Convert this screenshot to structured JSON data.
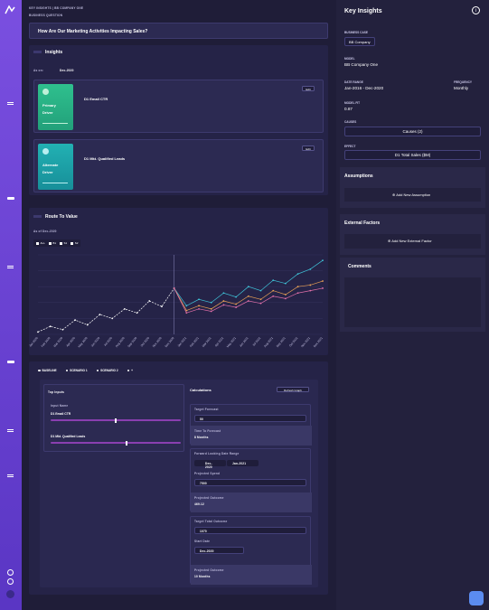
{
  "breadcrumb": [
    "KEY INSIGHTS",
    "BB COMPANY ONE"
  ],
  "business_question": {
    "label": "BUSINESS QUESTION",
    "text": "How Are Our Marketing Activities Impacting Sales?"
  },
  "insights": {
    "title": "Insights",
    "as_on_label": "As on:",
    "as_on": "Dec-2020",
    "cards": [
      {
        "badge": "Primary Driver",
        "name": "D1 Email CTR",
        "action": "Edit"
      },
      {
        "badge": "Alternate Driver",
        "name": "D1 Mkt. Qualified Leads",
        "action": "Edit"
      }
    ]
  },
  "route": {
    "title": "Route To Value",
    "as_of": "As of Dec-2020",
    "legend_all": "ALL"
  },
  "chart_data": {
    "type": "line",
    "categories": [
      "Jan 2020",
      "Feb 2020",
      "Mar 2020",
      "Apr 2020",
      "May 2020",
      "Jun 2020",
      "Jul 2020",
      "Aug 2020",
      "Sep 2020",
      "Oct 2020",
      "Nov 2020",
      "Dec 2020",
      "Jan 2021",
      "Feb 2021",
      "Mar 2021",
      "Apr 2021",
      "May 2021",
      "Jun 2021",
      "Jul 2021",
      "Aug 2021",
      "Sep 2021",
      "Oct 2021",
      "Nov 2021",
      "Dec 2021"
    ],
    "series": [
      {
        "color": "#ffffff",
        "dashed": true,
        "values": [
          3,
          10,
          6,
          18,
          12,
          25,
          20,
          32,
          27,
          42,
          35,
          58,
          null,
          null,
          null,
          null,
          null,
          null,
          null,
          null,
          null,
          null,
          null,
          null
        ]
      },
      {
        "name": "B1",
        "color": "#3fc1d6",
        "values": [
          null,
          null,
          null,
          null,
          null,
          null,
          null,
          null,
          null,
          null,
          null,
          58,
          36,
          44,
          40,
          52,
          47,
          60,
          55,
          68,
          64,
          76,
          82,
          93
        ]
      },
      {
        "name": "S1",
        "color": "#e8a055",
        "values": [
          null,
          null,
          null,
          null,
          null,
          null,
          null,
          null,
          null,
          null,
          null,
          58,
          30,
          36,
          32,
          42,
          38,
          48,
          44,
          55,
          50,
          60,
          62,
          67
        ]
      },
      {
        "name": "S2",
        "color": "#e06fa8",
        "values": [
          null,
          null,
          null,
          null,
          null,
          null,
          null,
          null,
          null,
          null,
          null,
          58,
          27,
          32,
          29,
          37,
          34,
          42,
          39,
          48,
          45,
          52,
          55,
          58
        ]
      }
    ],
    "ylim": [
      0,
      100
    ],
    "yticks": [
      0,
      20,
      40,
      60,
      80,
      100
    ],
    "grid": true
  },
  "scenarios": {
    "tabs": [
      "BASELINE",
      "SCENARIO 1",
      "SCENARIO 2",
      "+"
    ]
  },
  "top_inputs": {
    "title": "Top Inputs",
    "column": "Input Name",
    "slider_range": [
      0,
      100
    ],
    "items": [
      {
        "name": "D1 Email CTR",
        "value": 50
      },
      {
        "name": "D1 Mkt. Qualified Leads",
        "value": 58
      }
    ]
  },
  "calculations": {
    "title": "Calculations",
    "refresh": "Refresh Graph",
    "target_forecast_label": "Target Forecast",
    "target_forecast": "50",
    "time_to_forecast_label": "Time To Forecast",
    "time_to_forecast": "8 Months",
    "range_label": "Forward Looking Date Range",
    "range_from": "Dec-2020",
    "range_to": "Jan-2021",
    "spend_label": "Projected Spend",
    "spend": "7500",
    "outcome_label": "Projected Outcome",
    "outcome": "469.12",
    "target_total_label": "Target Total Outcome",
    "target_total": "1070",
    "start_label": "Start Date",
    "start": "Dec-2020",
    "outcome2_label": "Projected Outcome",
    "outcome2": "10 Months"
  },
  "key_insights": {
    "title": "Key Insights",
    "info": "i",
    "business_case_label": "BUSINESS CASE",
    "business_case": "BB Company",
    "model_label": "MODEL",
    "model": "BB Company One",
    "date_range_label": "DATE RANGE",
    "date_range": "Jan-2016 - Dec-2020",
    "frequency_label": "FREQUENCY",
    "frequency": "Monthly",
    "model_fit_label": "MODEL FIT",
    "model_fit": "0.87",
    "causes_label": "CAUSES",
    "causes": "Causes (2)",
    "effect_label": "EFFECT",
    "effect": "D1 Total Sales ($M)",
    "assumptions": "Assumptions",
    "add_assumption": "Add New Assumption",
    "external": "External Factors",
    "add_external": "Add New External Factor",
    "comments": "Comments"
  }
}
